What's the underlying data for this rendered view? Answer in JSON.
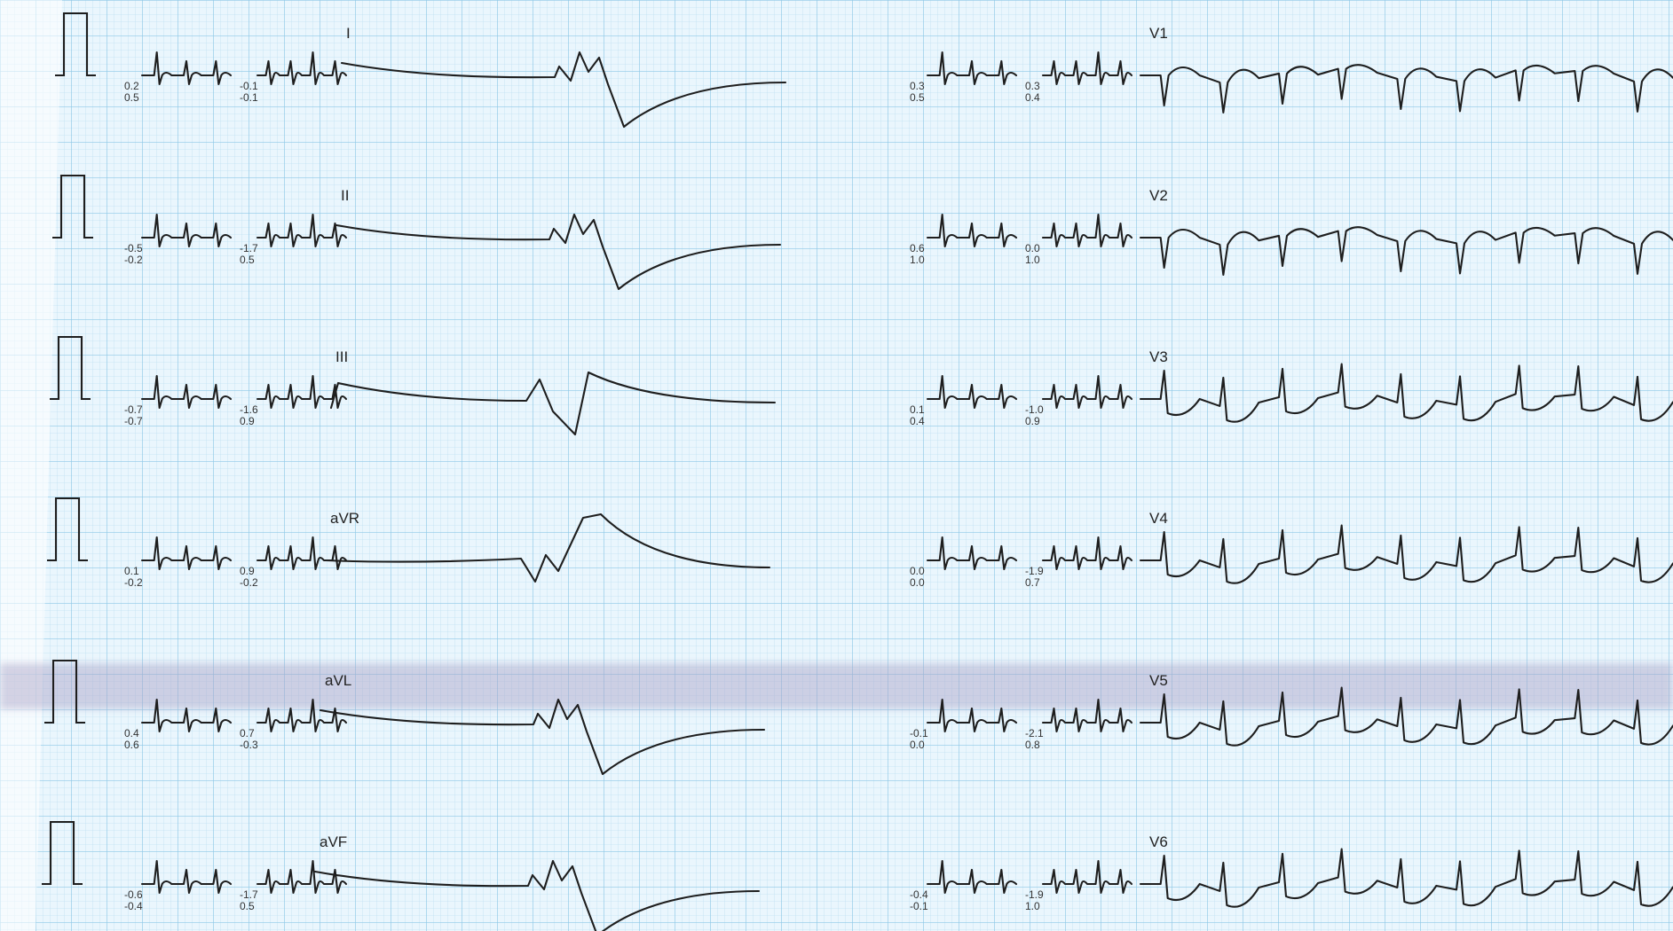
{
  "chart_data": {
    "type": "line",
    "colors": {
      "paper": "#eaf6fd",
      "grid_minor": "#bfe0f2",
      "grid_major": "#8ec8e6",
      "trace": "#1e1e1e",
      "artifact_band": "#a9a2c6"
    },
    "leads": [
      {
        "name": "I",
        "measurements": [
          [
            "0.2",
            "0.5"
          ],
          [
            "-0.1",
            "-0.1"
          ]
        ],
        "pattern": "neg"
      },
      {
        "name": "II",
        "measurements": [
          [
            "-0.5",
            "-0.2"
          ],
          [
            "-1.7",
            "0.5"
          ]
        ],
        "pattern": "neg"
      },
      {
        "name": "III",
        "measurements": [
          [
            "-0.7",
            "-0.7"
          ],
          [
            "-1.6",
            "0.9"
          ]
        ],
        "pattern": "biphasic"
      },
      {
        "name": "aVR",
        "measurements": [
          [
            "0.1",
            "-0.2"
          ],
          [
            "0.9",
            "-0.2"
          ]
        ],
        "pattern": "pos"
      },
      {
        "name": "aVL",
        "measurements": [
          [
            "0.4",
            "0.6"
          ],
          [
            "0.7",
            "-0.3"
          ]
        ],
        "pattern": "neg"
      },
      {
        "name": "aVF",
        "measurements": [
          [
            "-0.6",
            "-0.4"
          ],
          [
            "-1.7",
            "0.5"
          ]
        ],
        "pattern": "neg"
      },
      {
        "name": "V1",
        "measurements": [
          [
            "0.3",
            "0.5"
          ],
          [
            "0.3",
            "0.4"
          ]
        ],
        "pattern": "v1"
      },
      {
        "name": "V2",
        "measurements": [
          [
            "0.6",
            "1.0"
          ],
          [
            "0.0",
            "1.0"
          ]
        ],
        "pattern": "v2"
      },
      {
        "name": "V3",
        "measurements": [
          [
            "0.1",
            "0.4"
          ],
          [
            "-1.0",
            "0.9"
          ]
        ],
        "pattern": "v3"
      },
      {
        "name": "V4",
        "measurements": [
          [
            "0.0",
            "0.0"
          ],
          [
            "-1.9",
            "0.7"
          ]
        ],
        "pattern": "v4"
      },
      {
        "name": "V5",
        "measurements": [
          [
            "-0.1",
            "0.0"
          ],
          [
            "-2.1",
            "0.8"
          ]
        ],
        "pattern": "v5"
      },
      {
        "name": "V6",
        "measurements": [
          [
            "-0.4",
            "-0.1"
          ],
          [
            "-1.9",
            "1.0"
          ]
        ],
        "pattern": "v6"
      }
    ]
  }
}
